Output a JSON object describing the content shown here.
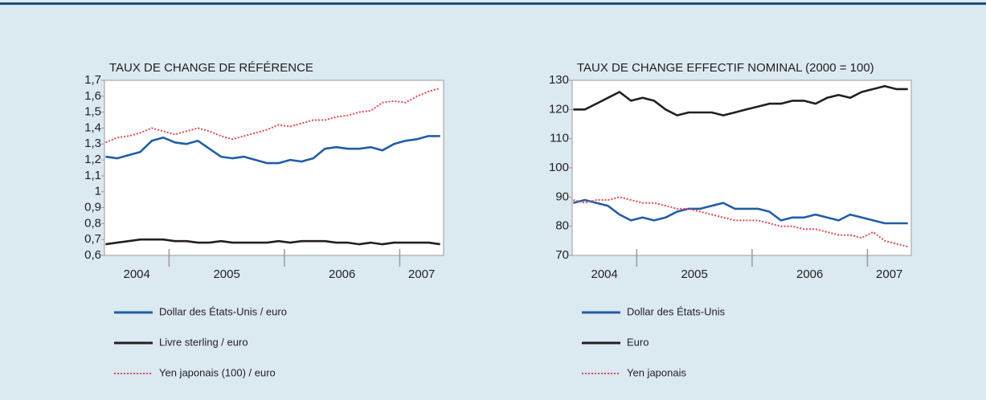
{
  "chart_data": [
    {
      "type": "line",
      "title": "TAUX DE CHANGE DE RÉFÉRENCE",
      "x": [
        2004.45,
        2004.55,
        2004.65,
        2004.75,
        2004.85,
        2004.95,
        2005.05,
        2005.15,
        2005.25,
        2005.35,
        2005.45,
        2005.55,
        2005.65,
        2005.75,
        2005.85,
        2005.95,
        2006.05,
        2006.15,
        2006.25,
        2006.35,
        2006.45,
        2006.55,
        2006.65,
        2006.75,
        2006.85,
        2006.95,
        2007.05,
        2007.15,
        2007.25,
        2007.35
      ],
      "xlim": [
        2004.44,
        2007.38
      ],
      "year_boundaries": [
        2005,
        2006,
        2007
      ],
      "year_labels": [
        "2004",
        "2005",
        "2006",
        "2007"
      ],
      "ylim": [
        0.6,
        1.7
      ],
      "yticks": [
        {
          "value": 0.6,
          "label": "0,6"
        },
        {
          "value": 0.7,
          "label": "0,7"
        },
        {
          "value": 0.8,
          "label": "0,8"
        },
        {
          "value": 0.9,
          "label": "0,9"
        },
        1,
        {
          "value": 1.1,
          "label": "1,1"
        },
        {
          "value": 1.2,
          "label": "1,2"
        },
        {
          "value": 1.3,
          "label": "1,3"
        },
        {
          "value": 1.4,
          "label": "1,4"
        },
        {
          "value": 1.5,
          "label": "1,5"
        },
        {
          "value": 1.6,
          "label": "1,6"
        },
        {
          "value": 1.7,
          "label": "1,7"
        }
      ],
      "series": [
        {
          "name": "Dollar des États-Unis / euro",
          "color": "#1f5ea8",
          "style": "solid",
          "values": [
            1.22,
            1.21,
            1.23,
            1.25,
            1.32,
            1.34,
            1.31,
            1.3,
            1.32,
            1.27,
            1.22,
            1.21,
            1.22,
            1.2,
            1.18,
            1.18,
            1.2,
            1.19,
            1.21,
            1.27,
            1.28,
            1.27,
            1.27,
            1.28,
            1.26,
            1.3,
            1.32,
            1.33,
            1.35,
            1.35
          ]
        },
        {
          "name": "Livre sterling / euro",
          "color": "#231f20",
          "style": "solid",
          "values": [
            0.67,
            0.68,
            0.69,
            0.7,
            0.7,
            0.7,
            0.69,
            0.69,
            0.68,
            0.68,
            0.69,
            0.68,
            0.68,
            0.68,
            0.68,
            0.69,
            0.68,
            0.69,
            0.69,
            0.69,
            0.68,
            0.68,
            0.67,
            0.68,
            0.67,
            0.68,
            0.68,
            0.68,
            0.68,
            0.67
          ]
        },
        {
          "name": "Yen japonais (100) / euro",
          "color": "#e8474c",
          "style": "dotted",
          "values": [
            1.31,
            1.34,
            1.35,
            1.37,
            1.4,
            1.38,
            1.36,
            1.38,
            1.4,
            1.38,
            1.35,
            1.33,
            1.35,
            1.37,
            1.39,
            1.42,
            1.41,
            1.43,
            1.45,
            1.45,
            1.47,
            1.48,
            1.5,
            1.51,
            1.56,
            1.57,
            1.56,
            1.6,
            1.63,
            1.65
          ]
        }
      ]
    },
    {
      "type": "line",
      "title": "TAUX DE CHANGE EFFECTIF NOMINAL (2000 = 100)",
      "x": [
        2004.45,
        2004.55,
        2004.65,
        2004.75,
        2004.85,
        2004.95,
        2005.05,
        2005.15,
        2005.25,
        2005.35,
        2005.45,
        2005.55,
        2005.65,
        2005.75,
        2005.85,
        2005.95,
        2006.05,
        2006.15,
        2006.25,
        2006.35,
        2006.45,
        2006.55,
        2006.65,
        2006.75,
        2006.85,
        2006.95,
        2007.05,
        2007.15,
        2007.25,
        2007.35
      ],
      "xlim": [
        2004.44,
        2007.38
      ],
      "year_boundaries": [
        2005,
        2006,
        2007
      ],
      "year_labels": [
        "2004",
        "2005",
        "2006",
        "2007"
      ],
      "ylim": [
        70,
        130
      ],
      "yticks": [
        70,
        80,
        90,
        100,
        110,
        120,
        130
      ],
      "series": [
        {
          "name": "Dollar des États-Unis",
          "color": "#1f5ea8",
          "style": "solid",
          "values": [
            88,
            89,
            88,
            87,
            84,
            82,
            83,
            82,
            83,
            85,
            86,
            86,
            87,
            88,
            86,
            86,
            86,
            85,
            82,
            83,
            83,
            84,
            83,
            82,
            84,
            83,
            82,
            81,
            81,
            81
          ]
        },
        {
          "name": "Euro",
          "color": "#231f20",
          "style": "solid",
          "values": [
            120,
            120,
            122,
            124,
            126,
            123,
            124,
            123,
            120,
            118,
            119,
            119,
            119,
            118,
            119,
            120,
            121,
            122,
            122,
            123,
            123,
            122,
            124,
            125,
            124,
            126,
            127,
            128,
            127,
            127
          ]
        },
        {
          "name": "Yen japonais",
          "color": "#e8474c",
          "style": "dotted",
          "values": [
            89,
            88,
            89,
            89,
            90,
            89,
            88,
            88,
            87,
            86,
            86,
            85,
            84,
            83,
            82,
            82,
            82,
            81,
            80,
            80,
            79,
            79,
            78,
            77,
            77,
            76,
            78,
            75,
            74,
            73
          ]
        }
      ]
    }
  ]
}
